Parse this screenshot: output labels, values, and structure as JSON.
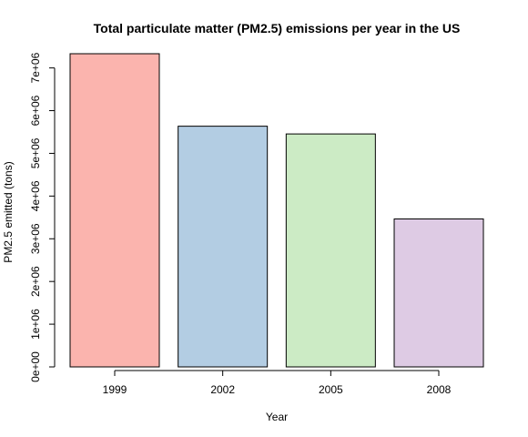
{
  "chart_data": {
    "type": "bar",
    "title": "Total particulate matter (PM2.5) emissions per year in the US",
    "xlabel": "Year",
    "ylabel": "PM2.5 emitted (tons)",
    "categories": [
      "1999",
      "2002",
      "2005",
      "2008"
    ],
    "values": [
      7332967,
      5635780,
      5454703,
      3464206
    ],
    "colors": [
      "#FBB4AE",
      "#B3CDE3",
      "#CCEBC5",
      "#DECBE4"
    ],
    "ylim": [
      0,
      7500000
    ],
    "yticks": [
      0,
      1000000,
      2000000,
      3000000,
      4000000,
      5000000,
      6000000,
      7000000
    ],
    "ytick_labels": [
      "0e+00",
      "1e+06",
      "2e+06",
      "3e+06",
      "4e+06",
      "5e+06",
      "6e+06",
      "7e+06"
    ],
    "grid": false,
    "legend": "none"
  }
}
